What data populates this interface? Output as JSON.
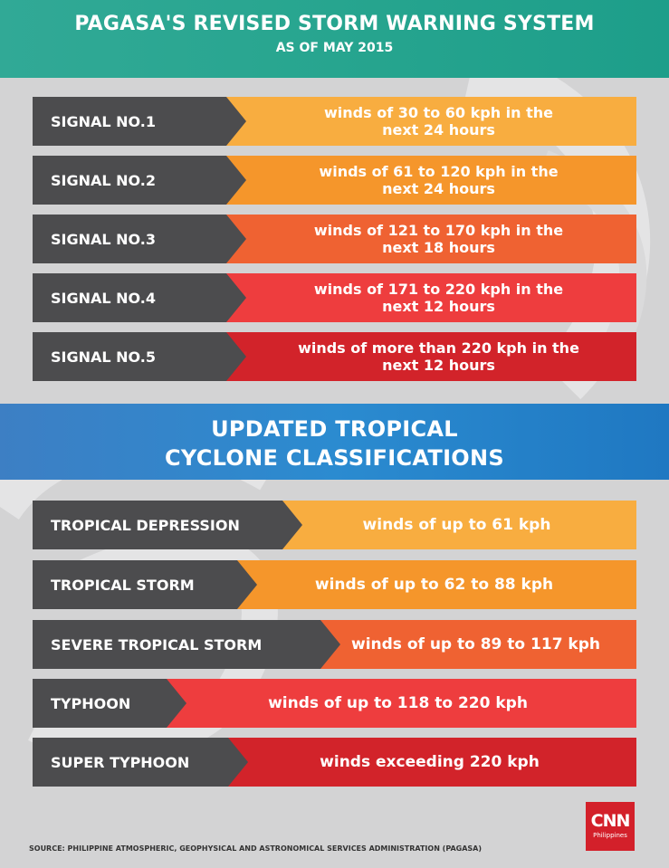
{
  "header": {
    "title": "PAGASA'S REVISED STORM WARNING SYSTEM",
    "subtitle": "AS OF MAY 2015",
    "color": "#27a58f"
  },
  "signals": [
    {
      "label": "SIGNAL NO.1",
      "line1": "winds of 30 to 60 kph in the",
      "line2": "next 24 hours",
      "color": "#f8ad40"
    },
    {
      "label": "SIGNAL NO.2",
      "line1": "winds of 61 to 120 kph in the",
      "line2": "next 24 hours",
      "color": "#f5962b"
    },
    {
      "label": "SIGNAL NO.3",
      "line1": "winds of 121 to 170 kph in the",
      "line2": "next 18 hours",
      "color": "#ef6232"
    },
    {
      "label": "SIGNAL NO.4",
      "line1": "winds of 171 to 220 kph in the",
      "line2": "next 12 hours",
      "color": "#ee3d3e"
    },
    {
      "label": "SIGNAL NO.5",
      "line1": "winds of more than 220 kph in the",
      "line2": "next 12 hours",
      "color": "#d2232a"
    }
  ],
  "section": {
    "line1": "UPDATED TROPICAL",
    "line2": "CYCLONE CLASSIFICATIONS",
    "color": "#2b8bd0"
  },
  "classifications": [
    {
      "label": "TROPICAL DEPRESSION",
      "value": "winds of up to 61 kph",
      "color": "#f8ad40"
    },
    {
      "label": "TROPICAL STORM",
      "value": "winds of up to 62 to 88 kph",
      "color": "#f5962b"
    },
    {
      "label": "SEVERE TROPICAL STORM",
      "value": "winds of up to 89 to 117 kph",
      "color": "#ef6232"
    },
    {
      "label": "TYPHOON",
      "value": "winds of up to 118 to 220 kph",
      "color": "#ee3d3e"
    },
    {
      "label": "SUPER TYPHOON",
      "value": "winds exceeding 220 kph",
      "color": "#d2232a"
    }
  ],
  "logo": {
    "brand": "CNN",
    "sub": "Philippines",
    "color": "#d3202a"
  },
  "source": "SOURCE: PHILIPPINE ATMOSPHERIC, GEOPHYSICAL AND ASTRONOMICAL SERVICES ADMINISTRATION (PAGASA)"
}
